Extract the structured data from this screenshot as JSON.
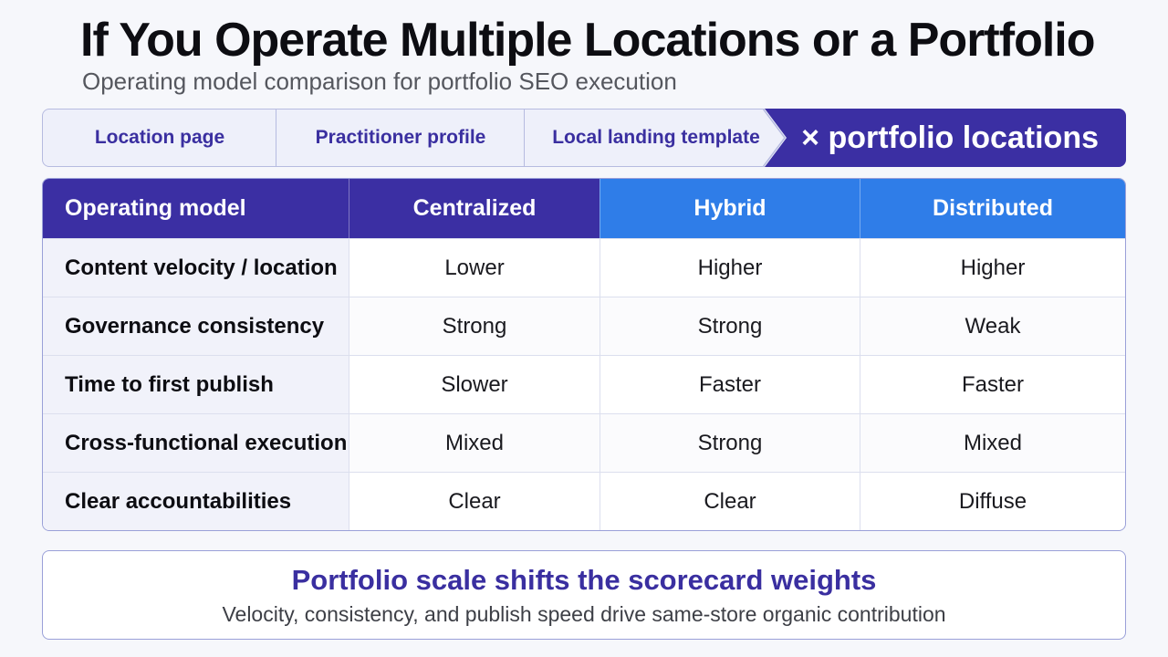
{
  "header": {
    "title": "If You Operate Multiple Locations or a Portfolio",
    "subtitle": "Operating model comparison for portfolio SEO execution"
  },
  "flow": {
    "steps": [
      "Location page",
      "Practitioner profile",
      "Local landing template"
    ],
    "result": "× portfolio locations"
  },
  "table": {
    "headers": [
      "Operating model",
      "Centralized",
      "Hybrid",
      "Distributed"
    ],
    "rows": [
      {
        "label": "Content velocity / location",
        "values": [
          "Lower",
          "Higher",
          "Higher"
        ]
      },
      {
        "label": "Governance consistency",
        "values": [
          "Strong",
          "Strong",
          "Weak"
        ]
      },
      {
        "label": "Time to first publish",
        "values": [
          "Slower",
          "Faster",
          "Faster"
        ]
      },
      {
        "label": "Cross-functional execution",
        "values": [
          "Mixed",
          "Strong",
          "Mixed"
        ]
      },
      {
        "label": "Clear accountabilities",
        "values": [
          "Clear",
          "Clear",
          "Diffuse"
        ]
      }
    ]
  },
  "callout": {
    "title": "Portfolio scale shifts the scorecard weights",
    "subtitle": "Velocity, consistency, and publish speed drive same-store organic contribution"
  },
  "colors": {
    "primary": "#3b2fa3",
    "accent": "#2f7de8"
  }
}
